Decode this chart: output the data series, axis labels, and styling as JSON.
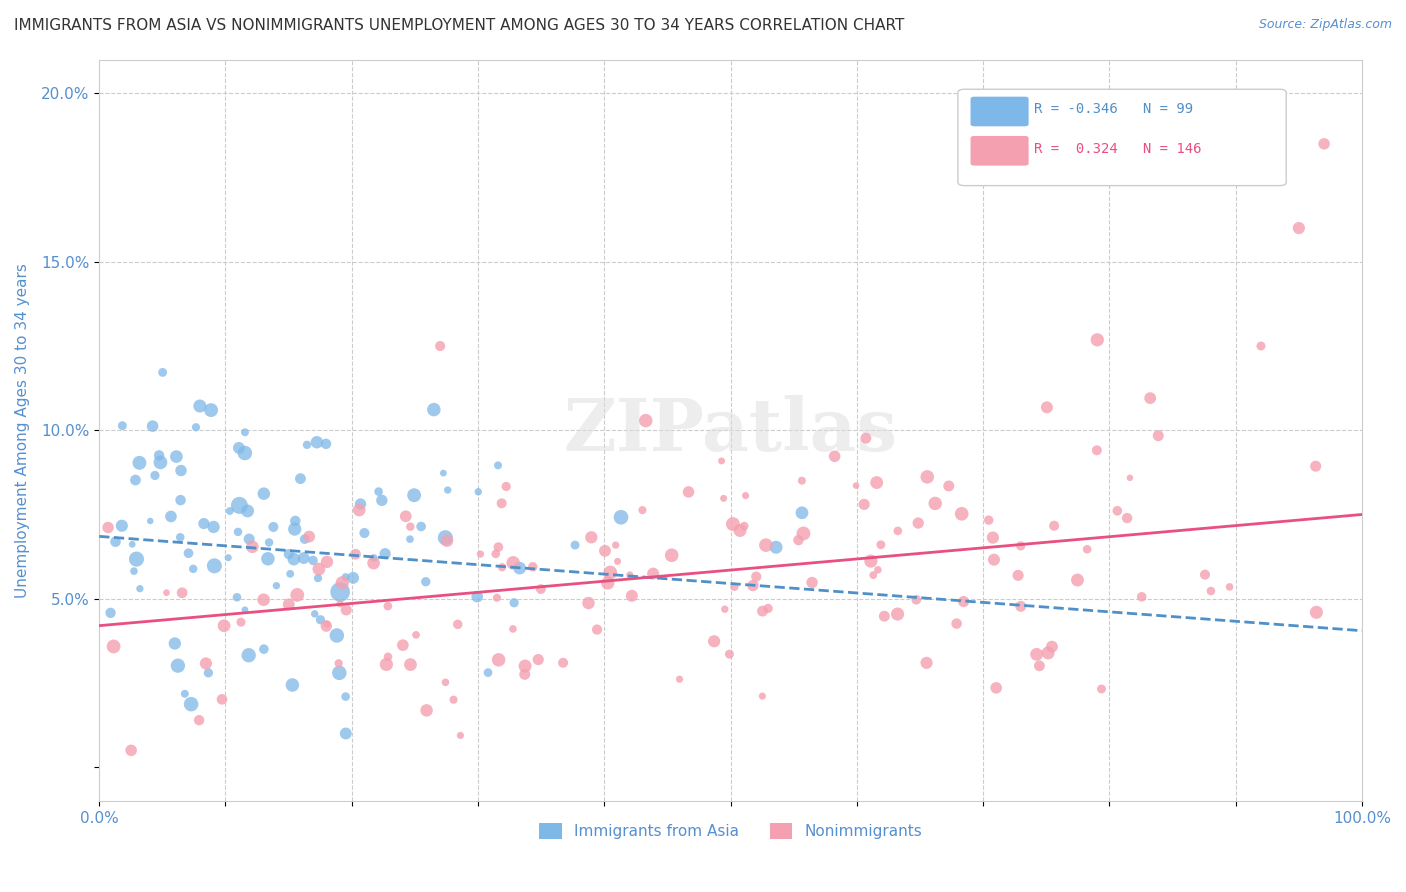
{
  "title": "IMMIGRANTS FROM ASIA VS NONIMMIGRANTS UNEMPLOYMENT AMONG AGES 30 TO 34 YEARS CORRELATION CHART",
  "source_text": "Source: ZipAtlas.com",
  "xlabel": "",
  "ylabel": "Unemployment Among Ages 30 to 34 years",
  "xlim": [
    0.0,
    1.0
  ],
  "ylim": [
    -0.01,
    0.21
  ],
  "xticks": [
    0.0,
    0.1,
    0.2,
    0.3,
    0.4,
    0.5,
    0.6,
    0.7,
    0.8,
    0.9,
    1.0
  ],
  "xticklabels": [
    "0.0%",
    "",
    "",
    "",
    "",
    "",
    "",
    "",
    "",
    "",
    "100.0%"
  ],
  "yticks": [
    0.0,
    0.05,
    0.1,
    0.15,
    0.2
  ],
  "yticklabels": [
    "",
    "5.0%",
    "10.0%",
    "15.0%",
    "20.0%"
  ],
  "blue_color": "#7EB8E8",
  "pink_color": "#F4A0B0",
  "blue_line_color": "#5090C8",
  "pink_line_color": "#E85080",
  "title_color": "#333333",
  "axis_label_color": "#5590D0",
  "tick_label_color": "#5590D0",
  "grid_color": "#CCCCCC",
  "legend_blue_r": "-0.346",
  "legend_blue_n": "99",
  "legend_pink_r": "0.324",
  "legend_pink_n": "146",
  "legend_label_blue": "Immigrants from Asia",
  "legend_label_pink": "Nonimmigrants",
  "watermark": "ZIPatlas",
  "blue_R": -0.346,
  "blue_N": 99,
  "pink_R": 0.324,
  "pink_N": 146,
  "blue_intercept": 0.0685,
  "blue_slope": -0.028,
  "pink_intercept": 0.042,
  "pink_slope": 0.033,
  "figsize": [
    14.06,
    8.92
  ],
  "dpi": 100
}
